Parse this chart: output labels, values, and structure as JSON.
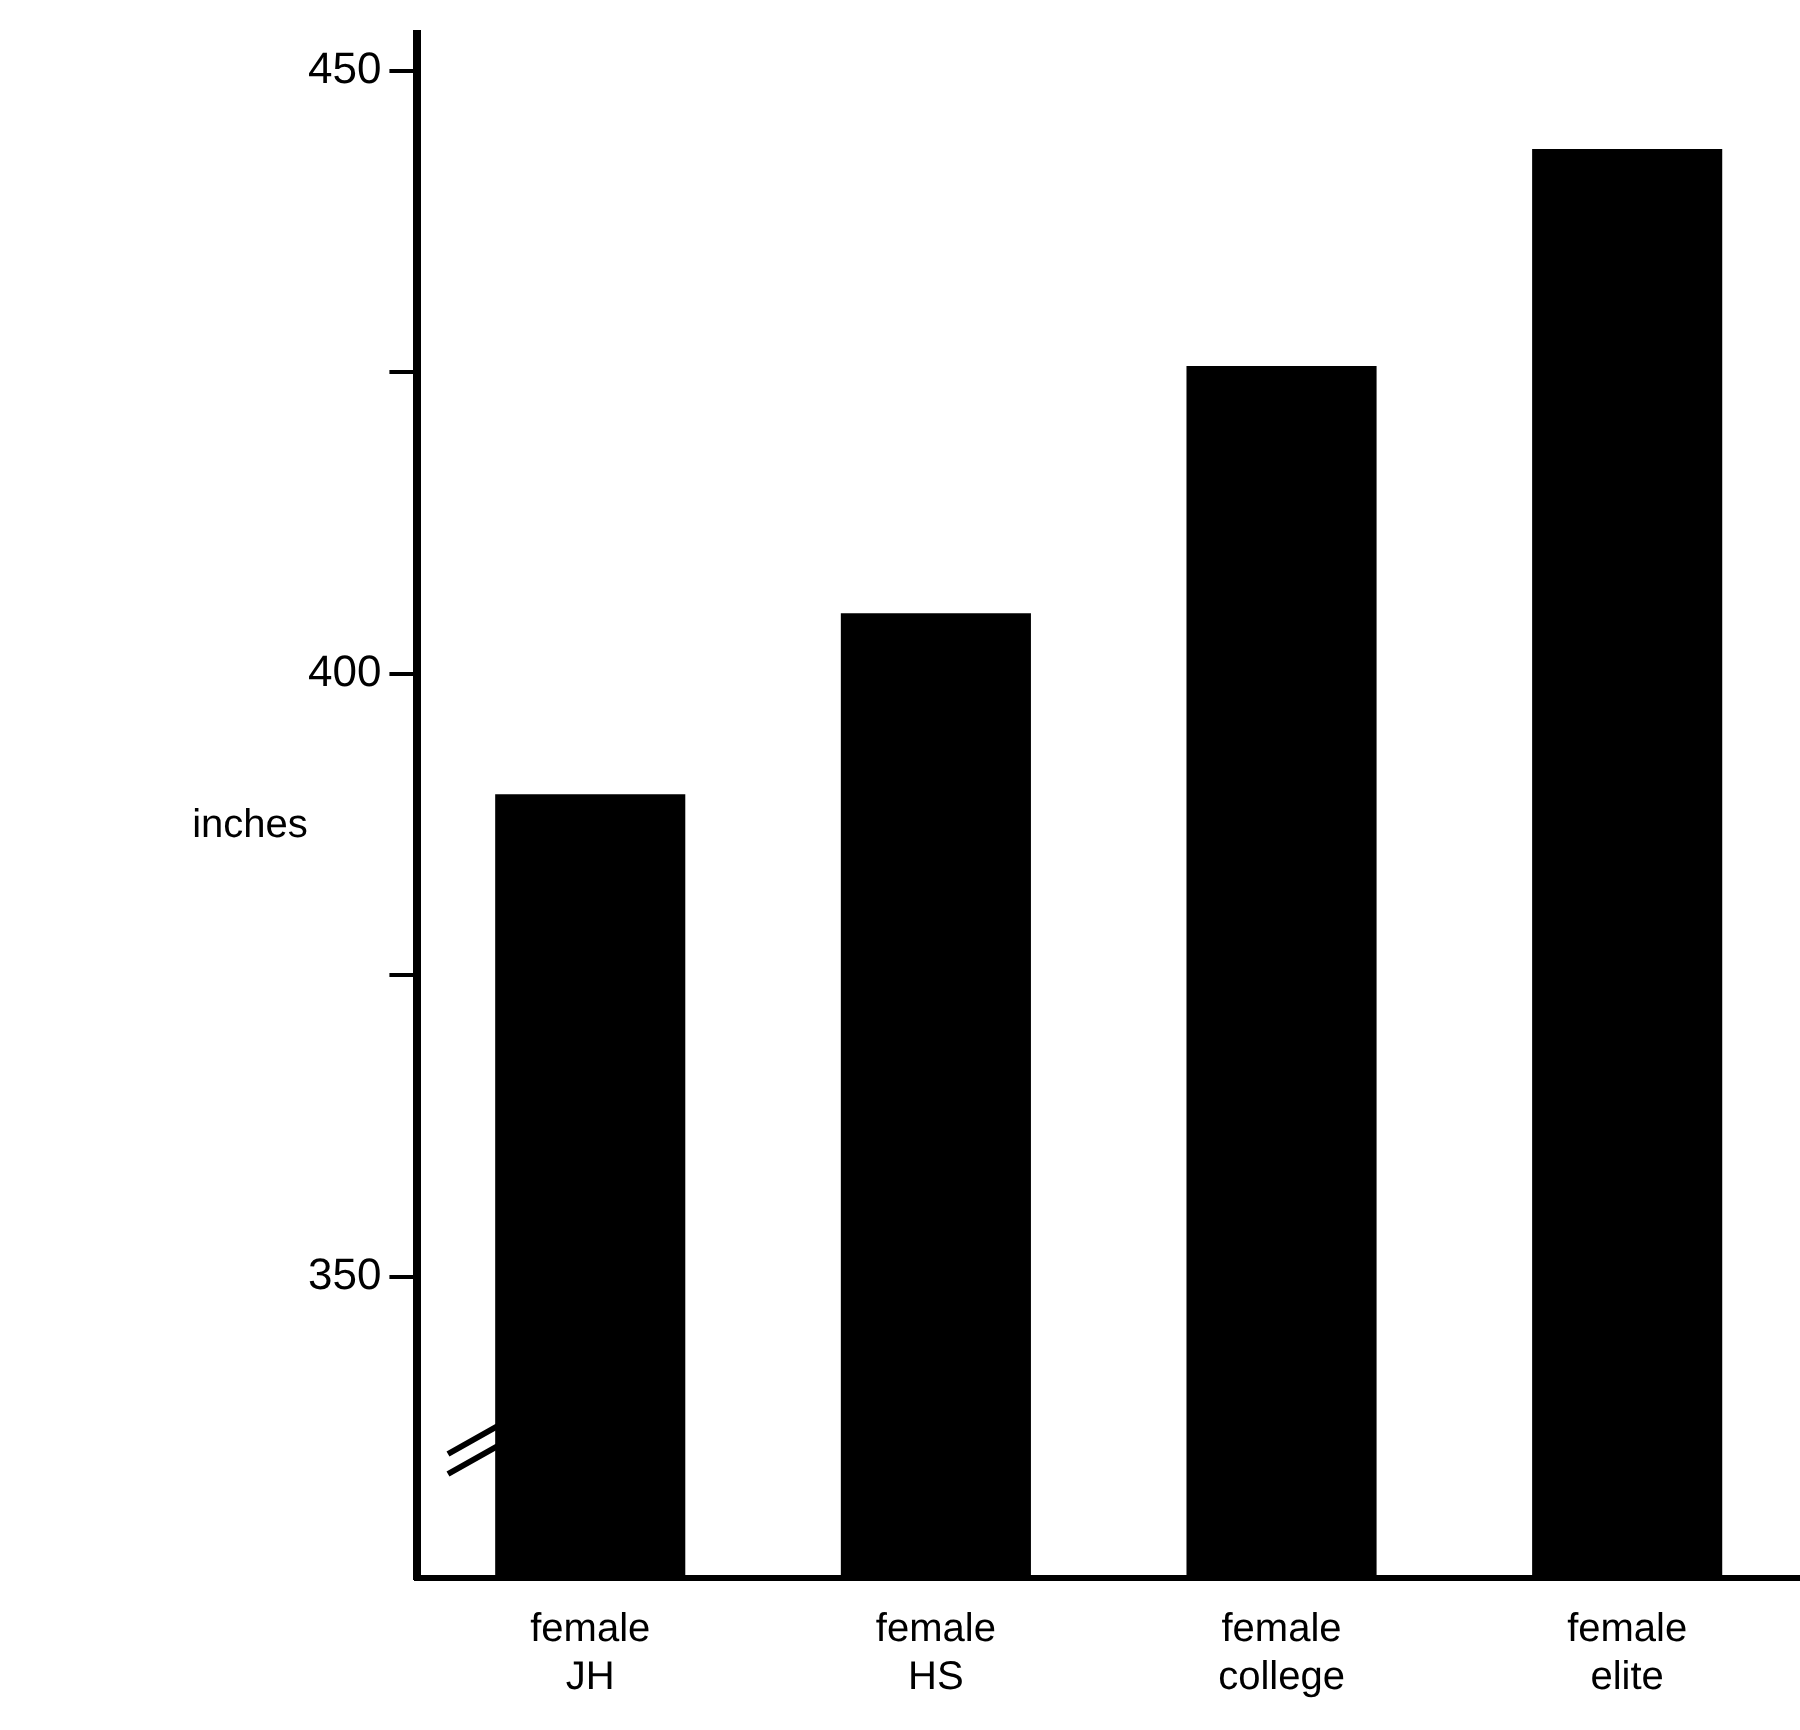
{
  "chart_data": {
    "type": "bar",
    "ylabel": "inches",
    "categories": [
      "female JH",
      "female HS",
      "female college",
      "female elite"
    ],
    "values": [
      390,
      405,
      425.5,
      443.5
    ],
    "color": "#000000",
    "ylim": [
      325,
      453
    ],
    "yticks": [
      350,
      {
        "value": 375,
        "label": null
      },
      400,
      {
        "value": 425,
        "label": null
      },
      450
    ],
    "grid": false,
    "legend": false
  }
}
